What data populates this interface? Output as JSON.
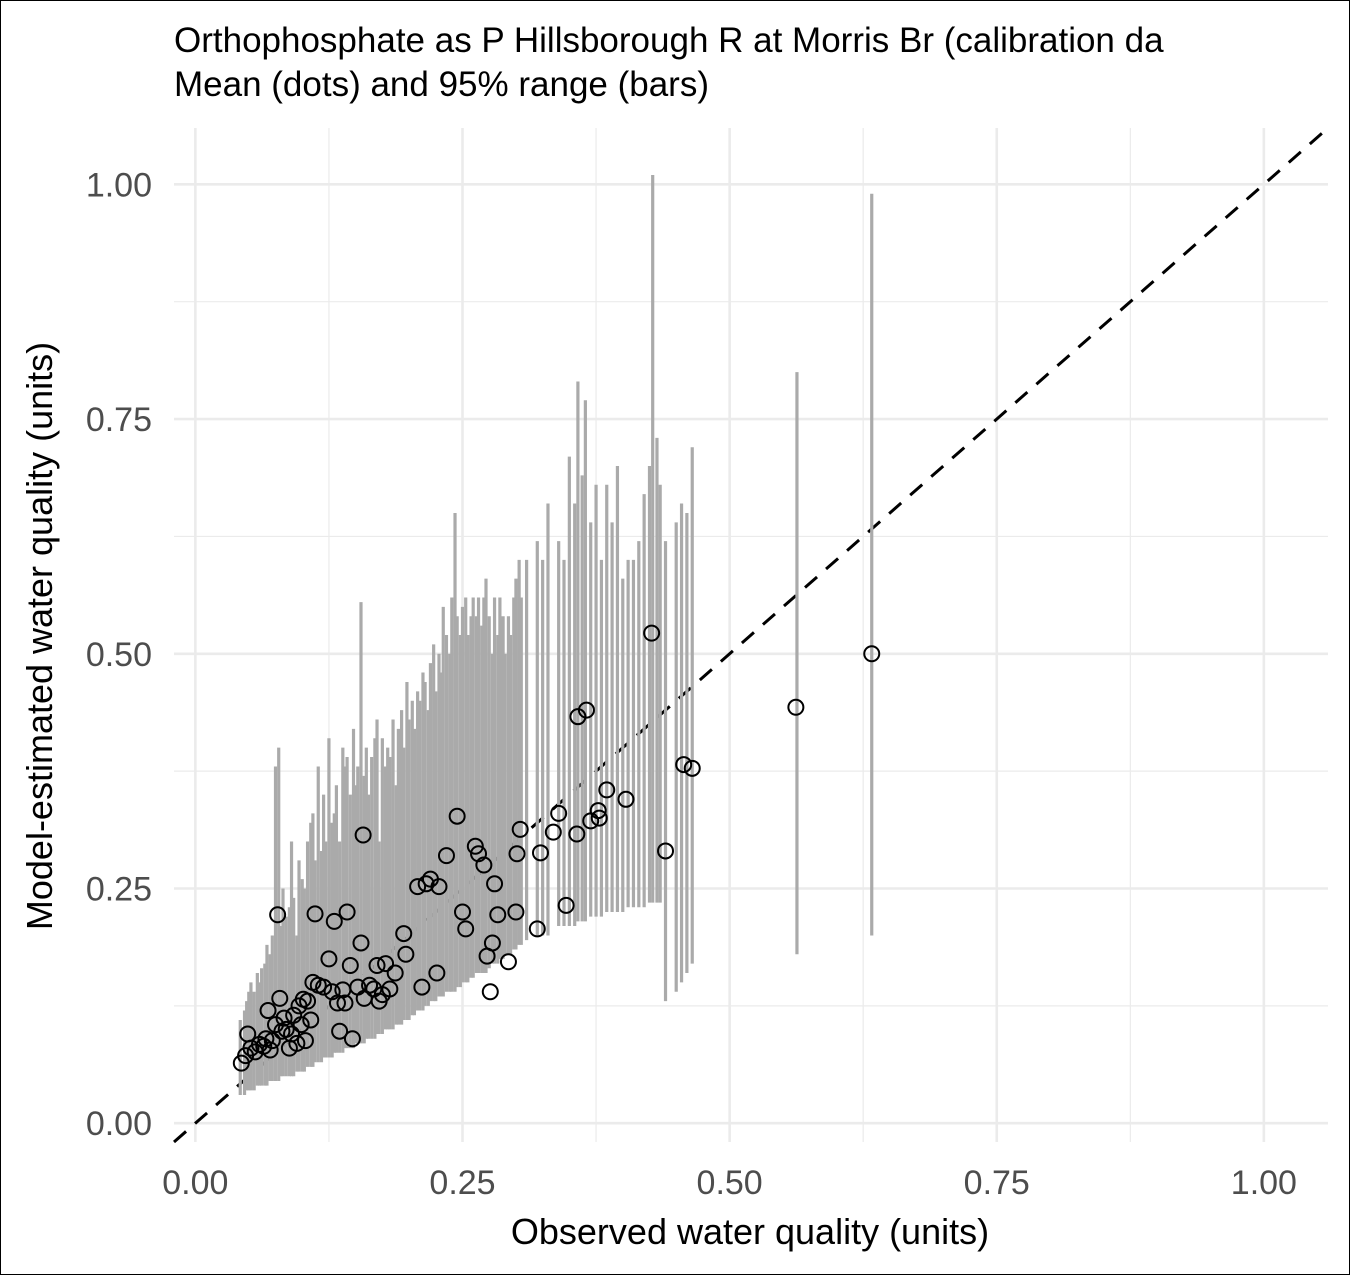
{
  "chart_data": {
    "type": "scatter",
    "title": "Orthophosphate as P Hillsborough R at Morris Br (calibration da",
    "subtitle": "Mean (dots) and 95% range (bars)",
    "xlabel": "Observed water quality (units)",
    "ylabel": "Model-estimated water quality (units)",
    "xlim": [
      -0.02,
      1.06
    ],
    "ylim": [
      -0.02,
      1.06
    ],
    "x_ticks": [
      "0.00",
      "0.25",
      "0.50",
      "0.75",
      "1.00"
    ],
    "y_ticks": [
      "0.00",
      "0.25",
      "0.50",
      "0.75",
      "1.00"
    ],
    "grid": true,
    "reference_line": {
      "style": "dashed",
      "slope": 1,
      "intercept": 0
    },
    "series": [
      {
        "type": "errorbar",
        "color": "#aaaaaa",
        "points": [
          [
            0.042,
            0.03,
            0.11
          ],
          [
            0.046,
            0.03,
            0.12
          ],
          [
            0.048,
            0.035,
            0.13
          ],
          [
            0.05,
            0.035,
            0.14
          ],
          [
            0.052,
            0.035,
            0.15
          ],
          [
            0.055,
            0.035,
            0.14
          ],
          [
            0.058,
            0.04,
            0.16
          ],
          [
            0.06,
            0.04,
            0.15
          ],
          [
            0.062,
            0.04,
            0.165
          ],
          [
            0.065,
            0.04,
            0.17
          ],
          [
            0.067,
            0.04,
            0.19
          ],
          [
            0.07,
            0.045,
            0.18
          ],
          [
            0.072,
            0.045,
            0.2
          ],
          [
            0.075,
            0.045,
            0.38
          ],
          [
            0.078,
            0.045,
            0.4
          ],
          [
            0.08,
            0.05,
            0.21
          ],
          [
            0.082,
            0.05,
            0.25
          ],
          [
            0.085,
            0.05,
            0.22
          ],
          [
            0.088,
            0.05,
            0.23
          ],
          [
            0.09,
            0.05,
            0.3
          ],
          [
            0.092,
            0.05,
            0.24
          ],
          [
            0.095,
            0.055,
            0.2
          ],
          [
            0.097,
            0.055,
            0.28
          ],
          [
            0.1,
            0.055,
            0.26
          ],
          [
            0.102,
            0.055,
            0.25
          ],
          [
            0.105,
            0.06,
            0.3
          ],
          [
            0.108,
            0.06,
            0.32
          ],
          [
            0.11,
            0.06,
            0.33
          ],
          [
            0.112,
            0.065,
            0.28
          ],
          [
            0.115,
            0.065,
            0.38
          ],
          [
            0.118,
            0.065,
            0.29
          ],
          [
            0.12,
            0.07,
            0.35
          ],
          [
            0.122,
            0.07,
            0.3
          ],
          [
            0.125,
            0.07,
            0.41
          ],
          [
            0.128,
            0.07,
            0.32
          ],
          [
            0.13,
            0.075,
            0.33
          ],
          [
            0.132,
            0.075,
            0.36
          ],
          [
            0.135,
            0.075,
            0.3
          ],
          [
            0.138,
            0.075,
            0.4
          ],
          [
            0.14,
            0.08,
            0.38
          ],
          [
            0.142,
            0.08,
            0.39
          ],
          [
            0.145,
            0.08,
            0.35
          ],
          [
            0.148,
            0.08,
            0.42
          ],
          [
            0.15,
            0.085,
            0.36
          ],
          [
            0.152,
            0.085,
            0.38
          ],
          [
            0.155,
            0.085,
            0.555
          ],
          [
            0.158,
            0.085,
            0.37
          ],
          [
            0.16,
            0.09,
            0.4
          ],
          [
            0.162,
            0.09,
            0.35
          ],
          [
            0.165,
            0.09,
            0.39
          ],
          [
            0.168,
            0.09,
            0.41
          ],
          [
            0.17,
            0.095,
            0.43
          ],
          [
            0.172,
            0.095,
            0.3
          ],
          [
            0.175,
            0.095,
            0.41
          ],
          [
            0.178,
            0.1,
            0.38
          ],
          [
            0.18,
            0.1,
            0.4
          ],
          [
            0.182,
            0.1,
            0.39
          ],
          [
            0.185,
            0.1,
            0.43
          ],
          [
            0.188,
            0.105,
            0.36
          ],
          [
            0.19,
            0.105,
            0.42
          ],
          [
            0.193,
            0.105,
            0.44
          ],
          [
            0.195,
            0.11,
            0.4
          ],
          [
            0.198,
            0.11,
            0.47
          ],
          [
            0.2,
            0.11,
            0.43
          ],
          [
            0.203,
            0.115,
            0.45
          ],
          [
            0.205,
            0.115,
            0.42
          ],
          [
            0.208,
            0.12,
            0.46
          ],
          [
            0.21,
            0.12,
            0.45
          ],
          [
            0.213,
            0.12,
            0.48
          ],
          [
            0.215,
            0.125,
            0.47
          ],
          [
            0.218,
            0.125,
            0.44
          ],
          [
            0.22,
            0.13,
            0.49
          ],
          [
            0.223,
            0.13,
            0.51
          ],
          [
            0.225,
            0.13,
            0.46
          ],
          [
            0.228,
            0.135,
            0.5
          ],
          [
            0.23,
            0.135,
            0.48
          ],
          [
            0.232,
            0.135,
            0.55
          ],
          [
            0.235,
            0.14,
            0.52
          ],
          [
            0.238,
            0.14,
            0.5
          ],
          [
            0.24,
            0.14,
            0.56
          ],
          [
            0.243,
            0.14,
            0.65
          ],
          [
            0.245,
            0.145,
            0.54
          ],
          [
            0.248,
            0.145,
            0.52
          ],
          [
            0.25,
            0.15,
            0.55
          ],
          [
            0.253,
            0.15,
            0.56
          ],
          [
            0.255,
            0.15,
            0.52
          ],
          [
            0.258,
            0.155,
            0.54
          ],
          [
            0.26,
            0.155,
            0.56
          ],
          [
            0.263,
            0.16,
            0.54
          ],
          [
            0.265,
            0.16,
            0.56
          ],
          [
            0.268,
            0.16,
            0.53
          ],
          [
            0.27,
            0.16,
            0.56
          ],
          [
            0.272,
            0.16,
            0.58
          ],
          [
            0.275,
            0.165,
            0.54
          ],
          [
            0.278,
            0.17,
            0.5
          ],
          [
            0.28,
            0.17,
            0.56
          ],
          [
            0.283,
            0.17,
            0.52
          ],
          [
            0.285,
            0.175,
            0.56
          ],
          [
            0.288,
            0.175,
            0.54
          ],
          [
            0.29,
            0.18,
            0.5
          ],
          [
            0.293,
            0.18,
            0.54
          ],
          [
            0.295,
            0.18,
            0.52
          ],
          [
            0.298,
            0.185,
            0.56
          ],
          [
            0.3,
            0.185,
            0.58
          ],
          [
            0.303,
            0.19,
            0.6
          ],
          [
            0.305,
            0.19,
            0.56
          ],
          [
            0.31,
            0.195,
            0.6
          ],
          [
            0.32,
            0.2,
            0.62
          ],
          [
            0.325,
            0.2,
            0.6
          ],
          [
            0.33,
            0.2,
            0.66
          ],
          [
            0.34,
            0.21,
            0.62
          ],
          [
            0.345,
            0.21,
            0.6
          ],
          [
            0.35,
            0.21,
            0.71
          ],
          [
            0.355,
            0.21,
            0.66
          ],
          [
            0.358,
            0.215,
            0.79
          ],
          [
            0.362,
            0.215,
            0.69
          ],
          [
            0.365,
            0.215,
            0.77
          ],
          [
            0.37,
            0.22,
            0.64
          ],
          [
            0.375,
            0.22,
            0.68
          ],
          [
            0.38,
            0.22,
            0.6
          ],
          [
            0.385,
            0.225,
            0.68
          ],
          [
            0.39,
            0.225,
            0.64
          ],
          [
            0.395,
            0.225,
            0.7
          ],
          [
            0.4,
            0.225,
            0.58
          ],
          [
            0.405,
            0.23,
            0.6
          ],
          [
            0.41,
            0.23,
            0.6
          ],
          [
            0.415,
            0.23,
            0.62
          ],
          [
            0.42,
            0.23,
            0.67
          ],
          [
            0.425,
            0.235,
            0.7
          ],
          [
            0.428,
            0.235,
            1.01
          ],
          [
            0.432,
            0.235,
            0.73
          ],
          [
            0.435,
            0.235,
            0.68
          ],
          [
            0.44,
            0.13,
            0.62
          ],
          [
            0.45,
            0.14,
            0.64
          ],
          [
            0.455,
            0.15,
            0.66
          ],
          [
            0.46,
            0.16,
            0.65
          ],
          [
            0.465,
            0.17,
            0.72
          ],
          [
            0.563,
            0.18,
            0.8
          ],
          [
            0.633,
            0.2,
            0.99
          ]
        ]
      },
      {
        "type": "points",
        "name": "Mean",
        "marker": "open-circle",
        "points": [
          [
            0.043,
            0.064
          ],
          [
            0.047,
            0.072
          ],
          [
            0.049,
            0.095
          ],
          [
            0.052,
            0.08
          ],
          [
            0.056,
            0.076
          ],
          [
            0.06,
            0.084
          ],
          [
            0.064,
            0.082
          ],
          [
            0.066,
            0.09
          ],
          [
            0.068,
            0.12
          ],
          [
            0.07,
            0.078
          ],
          [
            0.072,
            0.088
          ],
          [
            0.075,
            0.105
          ],
          [
            0.077,
            0.222
          ],
          [
            0.079,
            0.133
          ],
          [
            0.081,
            0.098
          ],
          [
            0.083,
            0.112
          ],
          [
            0.085,
            0.1
          ],
          [
            0.088,
            0.08
          ],
          [
            0.09,
            0.095
          ],
          [
            0.092,
            0.115
          ],
          [
            0.095,
            0.085
          ],
          [
            0.097,
            0.125
          ],
          [
            0.099,
            0.105
          ],
          [
            0.101,
            0.132
          ],
          [
            0.103,
            0.088
          ],
          [
            0.105,
            0.13
          ],
          [
            0.108,
            0.11
          ],
          [
            0.11,
            0.15
          ],
          [
            0.112,
            0.223
          ],
          [
            0.115,
            0.147
          ],
          [
            0.12,
            0.145
          ],
          [
            0.125,
            0.175
          ],
          [
            0.128,
            0.14
          ],
          [
            0.13,
            0.215
          ],
          [
            0.133,
            0.128
          ],
          [
            0.135,
            0.098
          ],
          [
            0.138,
            0.142
          ],
          [
            0.14,
            0.128
          ],
          [
            0.142,
            0.225
          ],
          [
            0.145,
            0.168
          ],
          [
            0.147,
            0.09
          ],
          [
            0.152,
            0.145
          ],
          [
            0.155,
            0.192
          ],
          [
            0.157,
            0.307
          ],
          [
            0.158,
            0.133
          ],
          [
            0.163,
            0.147
          ],
          [
            0.167,
            0.143
          ],
          [
            0.17,
            0.168
          ],
          [
            0.172,
            0.13
          ],
          [
            0.175,
            0.137
          ],
          [
            0.178,
            0.17
          ],
          [
            0.182,
            0.143
          ],
          [
            0.187,
            0.16
          ],
          [
            0.195,
            0.202
          ],
          [
            0.197,
            0.18
          ],
          [
            0.208,
            0.252
          ],
          [
            0.212,
            0.145
          ],
          [
            0.216,
            0.255
          ],
          [
            0.22,
            0.26
          ],
          [
            0.226,
            0.16
          ],
          [
            0.228,
            0.252
          ],
          [
            0.235,
            0.285
          ],
          [
            0.245,
            0.327
          ],
          [
            0.25,
            0.225
          ],
          [
            0.253,
            0.207
          ],
          [
            0.262,
            0.295
          ],
          [
            0.265,
            0.287
          ],
          [
            0.27,
            0.275
          ],
          [
            0.273,
            0.178
          ],
          [
            0.276,
            0.14
          ],
          [
            0.278,
            0.192
          ],
          [
            0.28,
            0.255
          ],
          [
            0.283,
            0.222
          ],
          [
            0.293,
            0.172
          ],
          [
            0.3,
            0.225
          ],
          [
            0.301,
            0.287
          ],
          [
            0.304,
            0.313
          ],
          [
            0.32,
            0.207
          ],
          [
            0.323,
            0.288
          ],
          [
            0.335,
            0.31
          ],
          [
            0.34,
            0.33
          ],
          [
            0.347,
            0.232
          ],
          [
            0.357,
            0.308
          ],
          [
            0.358,
            0.433
          ],
          [
            0.366,
            0.44
          ],
          [
            0.37,
            0.322
          ],
          [
            0.377,
            0.333
          ],
          [
            0.378,
            0.325
          ],
          [
            0.385,
            0.355
          ],
          [
            0.403,
            0.345
          ],
          [
            0.427,
            0.522
          ],
          [
            0.44,
            0.29
          ],
          [
            0.457,
            0.382
          ],
          [
            0.465,
            0.378
          ],
          [
            0.562,
            0.443
          ],
          [
            0.633,
            0.5
          ]
        ]
      }
    ]
  }
}
